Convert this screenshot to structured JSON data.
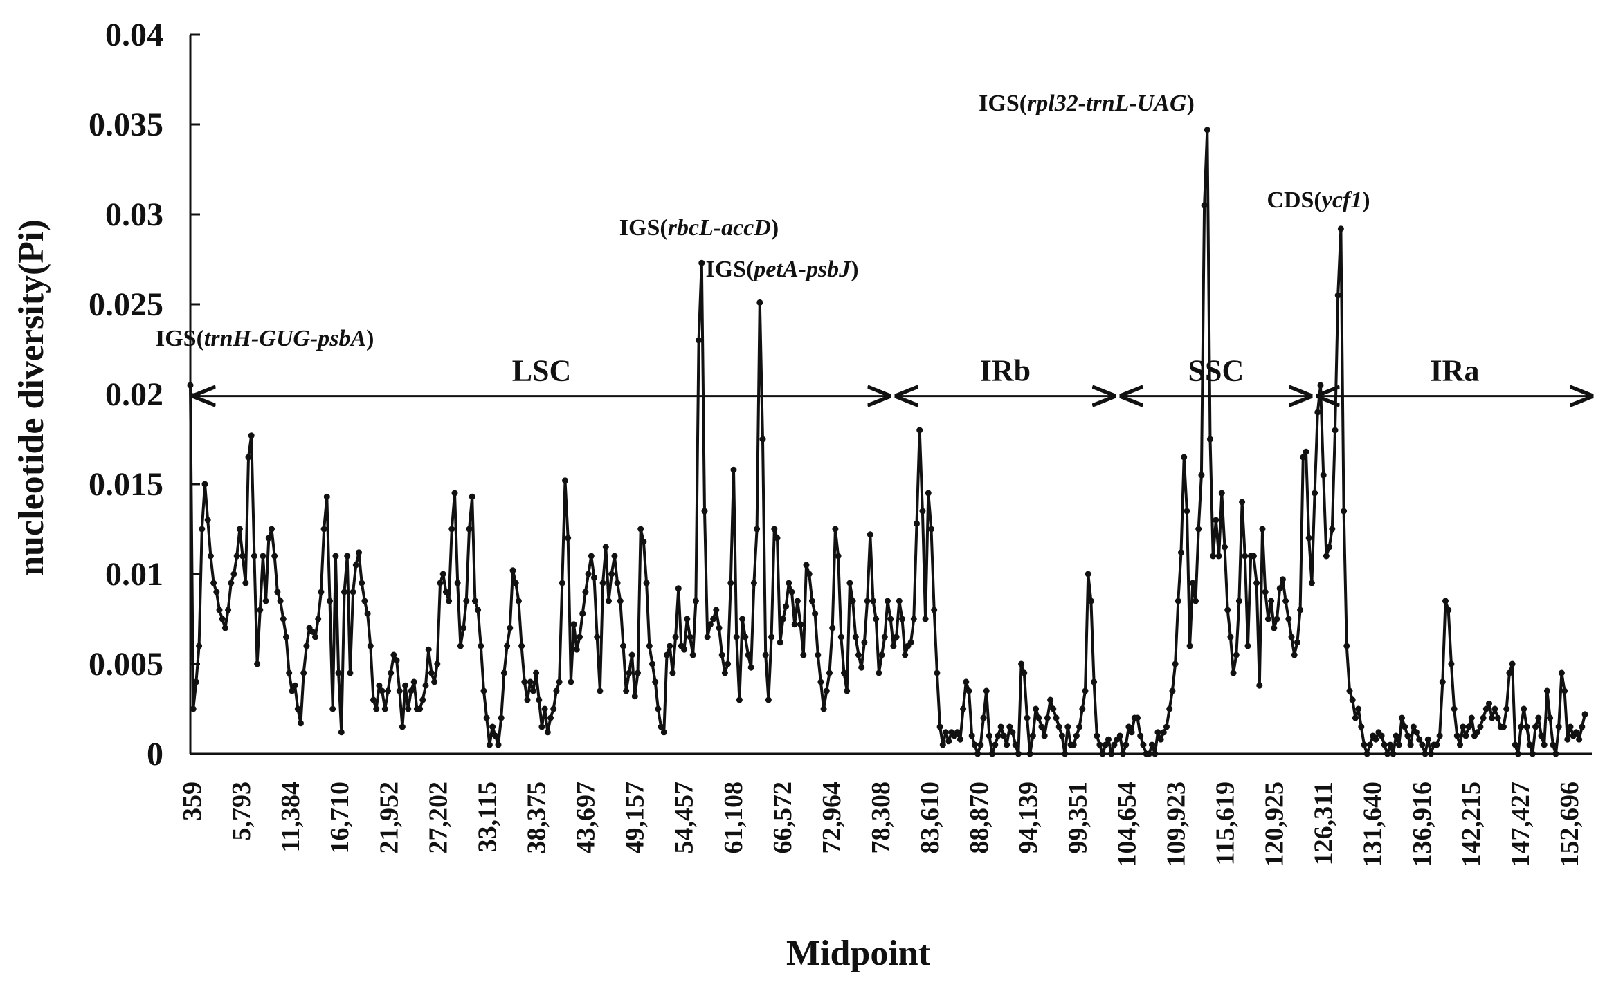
{
  "chart_data": {
    "type": "line",
    "title": "",
    "xlabel": "Midpoint",
    "ylabel": "nucleotide diversity(Pi)",
    "ylim": [
      0,
      0.04
    ],
    "yticks": [
      "0",
      "0.005",
      "0.01",
      "0.015",
      "0.02",
      "0.025",
      "0.03",
      "0.035",
      "0.04"
    ],
    "xtick_labels": [
      "359",
      "5,793",
      "11,384",
      "16,710",
      "21,952",
      "27,202",
      "33,115",
      "38,375",
      "43,697",
      "49,157",
      "54,457",
      "61,108",
      "66,572",
      "72,964",
      "78,308",
      "83,610",
      "88,870",
      "94,139",
      "99,351",
      "104,654",
      "109,923",
      "115,619",
      "120,925",
      "126,311",
      "131,640",
      "136,916",
      "142,215",
      "147,427",
      "152,696"
    ],
    "series": [
      {
        "name": "Pi",
        "values": [
          0.0205,
          0.0025,
          0.004,
          0.006,
          0.0125,
          0.015,
          0.013,
          0.011,
          0.0095,
          0.009,
          0.008,
          0.0075,
          0.007,
          0.008,
          0.0095,
          0.01,
          0.011,
          0.0125,
          0.011,
          0.0095,
          0.0165,
          0.0177,
          0.011,
          0.005,
          0.008,
          0.011,
          0.0085,
          0.012,
          0.0125,
          0.011,
          0.009,
          0.0085,
          0.0075,
          0.0065,
          0.0045,
          0.0035,
          0.0038,
          0.0025,
          0.0017,
          0.0045,
          0.006,
          0.007,
          0.0068,
          0.0065,
          0.0075,
          0.009,
          0.0125,
          0.0143,
          0.0085,
          0.0025,
          0.011,
          0.0045,
          0.0012,
          0.009,
          0.011,
          0.0045,
          0.009,
          0.0105,
          0.0112,
          0.0095,
          0.0085,
          0.0078,
          0.006,
          0.003,
          0.0025,
          0.0038,
          0.0035,
          0.0025,
          0.0035,
          0.0045,
          0.0055,
          0.0052,
          0.0035,
          0.0015,
          0.0038,
          0.0025,
          0.0035,
          0.004,
          0.0025,
          0.0025,
          0.003,
          0.0038,
          0.0058,
          0.0045,
          0.004,
          0.005,
          0.0095,
          0.01,
          0.009,
          0.0085,
          0.0125,
          0.0145,
          0.0095,
          0.006,
          0.007,
          0.0085,
          0.0125,
          0.0143,
          0.0085,
          0.008,
          0.006,
          0.0035,
          0.002,
          0.0005,
          0.0015,
          0.001,
          0.0005,
          0.002,
          0.0045,
          0.006,
          0.007,
          0.0102,
          0.0095,
          0.0085,
          0.006,
          0.004,
          0.003,
          0.004,
          0.0035,
          0.0045,
          0.003,
          0.0015,
          0.0025,
          0.0012,
          0.002,
          0.0025,
          0.0035,
          0.004,
          0.0095,
          0.0152,
          0.012,
          0.004,
          0.0072,
          0.0058,
          0.0065,
          0.0078,
          0.009,
          0.01,
          0.011,
          0.0098,
          0.0065,
          0.0035,
          0.0095,
          0.0115,
          0.0085,
          0.01,
          0.011,
          0.0095,
          0.0085,
          0.006,
          0.0035,
          0.0045,
          0.0055,
          0.0032,
          0.0045,
          0.0125,
          0.0118,
          0.0095,
          0.006,
          0.005,
          0.004,
          0.0025,
          0.0015,
          0.0012,
          0.0055,
          0.006,
          0.0045,
          0.0065,
          0.0092,
          0.006,
          0.0058,
          0.0075,
          0.0065,
          0.0055,
          0.0085,
          0.023,
          0.0273,
          0.0135,
          0.0065,
          0.0072,
          0.0075,
          0.008,
          0.007,
          0.0055,
          0.0045,
          0.005,
          0.0095,
          0.0158,
          0.0065,
          0.003,
          0.0075,
          0.0065,
          0.0055,
          0.0048,
          0.0095,
          0.0125,
          0.0251,
          0.0175,
          0.0055,
          0.003,
          0.0065,
          0.0125,
          0.012,
          0.0062,
          0.0075,
          0.0082,
          0.0095,
          0.009,
          0.0072,
          0.0085,
          0.0072,
          0.0055,
          0.0105,
          0.01,
          0.0085,
          0.0078,
          0.0055,
          0.004,
          0.0025,
          0.0035,
          0.0045,
          0.007,
          0.0125,
          0.011,
          0.0065,
          0.0045,
          0.0035,
          0.0095,
          0.0085,
          0.0065,
          0.0055,
          0.0048,
          0.0062,
          0.0085,
          0.0122,
          0.0085,
          0.0075,
          0.0045,
          0.0055,
          0.0065,
          0.0085,
          0.0075,
          0.006,
          0.0065,
          0.0085,
          0.0075,
          0.0055,
          0.006,
          0.0062,
          0.0075,
          0.0128,
          0.018,
          0.0135,
          0.0075,
          0.0145,
          0.0125,
          0.008,
          0.0045,
          0.0015,
          0.0005,
          0.0012,
          0.0007,
          0.0012,
          0.001,
          0.0012,
          0.0008,
          0.0025,
          0.004,
          0.0035,
          0.001,
          0.0005,
          0.0,
          0.0005,
          0.002,
          0.0035,
          0.001,
          0.0,
          0.0005,
          0.001,
          0.0015,
          0.001,
          0.0005,
          0.0015,
          0.0012,
          0.0005,
          0.0,
          0.005,
          0.0045,
          0.002,
          0.0,
          0.001,
          0.0025,
          0.002,
          0.0015,
          0.001,
          0.002,
          0.003,
          0.0025,
          0.002,
          0.0015,
          0.001,
          0.0,
          0.0015,
          0.0005,
          0.0005,
          0.001,
          0.0015,
          0.0025,
          0.0035,
          0.01,
          0.0085,
          0.004,
          0.001,
          0.0005,
          0.0,
          0.0005,
          0.0008,
          0.0,
          0.0005,
          0.0008,
          0.001,
          0.0,
          0.0005,
          0.0015,
          0.0012,
          0.002,
          0.002,
          0.001,
          0.0005,
          0.0,
          0.0,
          0.0005,
          0.0,
          0.0012,
          0.0008,
          0.0012,
          0.0015,
          0.0025,
          0.0035,
          0.005,
          0.0085,
          0.0112,
          0.0165,
          0.0135,
          0.006,
          0.0095,
          0.0085,
          0.0125,
          0.0155,
          0.0305,
          0.0347,
          0.0175,
          0.011,
          0.013,
          0.011,
          0.0145,
          0.0115,
          0.008,
          0.0065,
          0.0045,
          0.0055,
          0.0085,
          0.014,
          0.011,
          0.006,
          0.011,
          0.011,
          0.0095,
          0.0038,
          0.0125,
          0.009,
          0.0075,
          0.0085,
          0.007,
          0.0075,
          0.0092,
          0.0097,
          0.0085,
          0.0075,
          0.0065,
          0.0055,
          0.0062,
          0.008,
          0.0165,
          0.0168,
          0.012,
          0.0095,
          0.0145,
          0.019,
          0.0205,
          0.0155,
          0.011,
          0.0115,
          0.0125,
          0.018,
          0.0255,
          0.0292,
          0.0135,
          0.006,
          0.0035,
          0.003,
          0.002,
          0.0025,
          0.0015,
          0.0005,
          0.0,
          0.0005,
          0.001,
          0.0008,
          0.0012,
          0.001,
          0.0005,
          0.0,
          0.0005,
          0.0,
          0.001,
          0.0005,
          0.002,
          0.0015,
          0.001,
          0.0005,
          0.0015,
          0.0012,
          0.0008,
          0.0005,
          0.0,
          0.0008,
          0.0,
          0.0005,
          0.0005,
          0.001,
          0.004,
          0.0085,
          0.008,
          0.005,
          0.0025,
          0.001,
          0.0005,
          0.0015,
          0.001,
          0.0015,
          0.002,
          0.001,
          0.0012,
          0.0015,
          0.002,
          0.0025,
          0.0028,
          0.002,
          0.0025,
          0.002,
          0.0015,
          0.0015,
          0.0025,
          0.0045,
          0.005,
          0.0005,
          0.0,
          0.0015,
          0.0025,
          0.0015,
          0.0005,
          0.0,
          0.0015,
          0.002,
          0.001,
          0.0005,
          0.0035,
          0.002,
          0.0005,
          0.0,
          0.0015,
          0.0045,
          0.0035,
          0.0008,
          0.0015,
          0.001,
          0.0012,
          0.0008,
          0.0015,
          0.0022
        ]
      }
    ],
    "grid": false,
    "legend": "none",
    "regions": [
      {
        "label": "LSC",
        "from": 0,
        "to": 0.5
      },
      {
        "label": "IRb",
        "from": 0.5,
        "to": 0.66
      },
      {
        "label": "SSC",
        "from": 0.66,
        "to": 0.8
      },
      {
        "label": "IRa",
        "from": 0.8,
        "to": 1.0
      }
    ],
    "annotations": [
      {
        "prefix": "IGS(",
        "name": "trnH-GUG-psbA",
        "suffix": ")",
        "index": 0
      },
      {
        "prefix": "IGS(",
        "name": "rbcL-accD",
        "suffix": ")",
        "index": 168
      },
      {
        "prefix": "IGS(",
        "name": "petA-psbJ",
        "suffix": ")",
        "index": 188
      },
      {
        "prefix": "IGS(",
        "name": "rpl32-trnL-UAG",
        "suffix": ")",
        "index": 341
      },
      {
        "prefix": "CDS(",
        "name": "ycf1",
        "suffix": ")",
        "index": 392
      }
    ],
    "colors": {
      "line": "#111111",
      "marker": "#111111",
      "axis": "#111111"
    }
  }
}
